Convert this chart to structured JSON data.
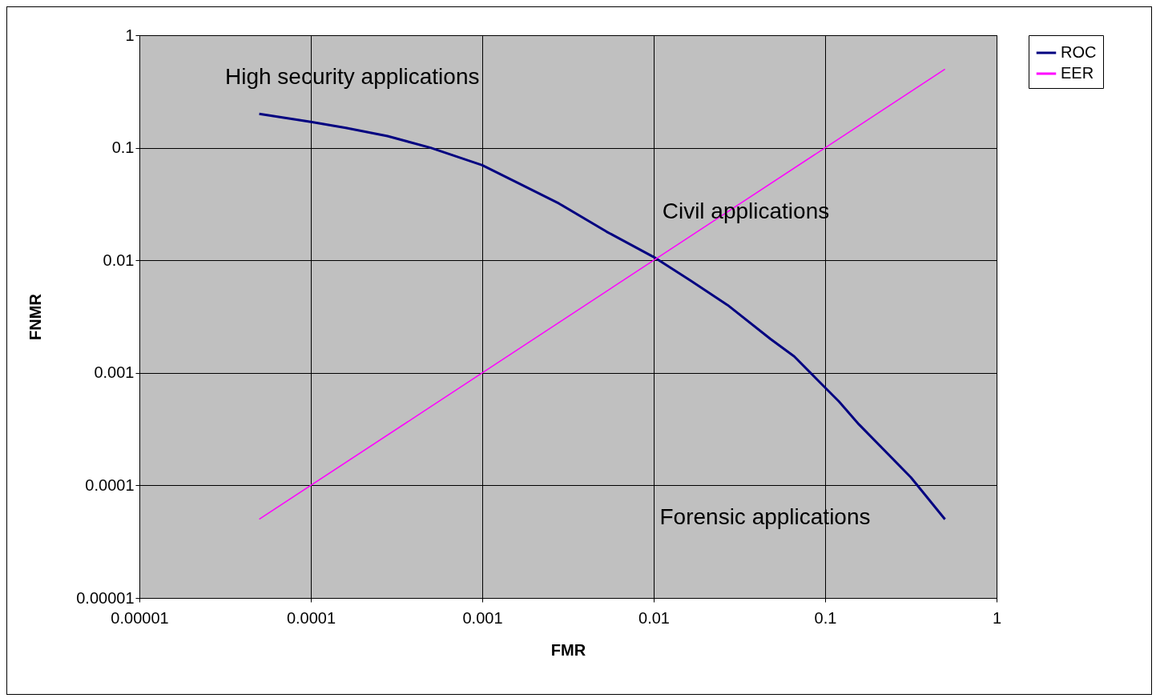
{
  "chart_data": {
    "type": "line",
    "xlabel": "FMR",
    "ylabel": "FNMR",
    "log": "xy",
    "grid": true,
    "legend": "right",
    "xlim": [
      1e-05,
      1
    ],
    "ylim": [
      1e-05,
      1
    ],
    "xticks": [
      {
        "value": 1e-05,
        "label": "0.00001"
      },
      0.0001,
      0.001,
      0.01,
      0.1,
      1
    ],
    "yticks": [
      {
        "value": 1e-05,
        "label": "0.00001"
      },
      0.0001,
      0.001,
      0.01,
      0.1,
      1
    ],
    "series": [
      {
        "name": "ROC",
        "color": "#000080",
        "x": [
          5e-05,
          0.0001,
          0.00016,
          0.00028,
          0.0005,
          0.001,
          0.0016,
          0.0028,
          0.0053,
          0.01,
          0.0164,
          0.027,
          0.048,
          0.066,
          0.1,
          0.12,
          0.157,
          0.316,
          0.5
        ],
        "values": [
          0.2,
          0.17,
          0.15,
          0.127,
          0.1,
          0.07,
          0.049,
          0.032,
          0.018,
          0.0107,
          0.0066,
          0.004,
          0.002,
          0.0014,
          0.00074,
          0.00056,
          0.00035,
          0.000118,
          5e-05
        ]
      },
      {
        "name": "EER",
        "color": "#ff00ff",
        "x": [
          5e-05,
          0.5
        ],
        "values": [
          5e-05,
          0.5
        ]
      }
    ],
    "annotations": [
      "High security applications",
      "Civil applications",
      "Forensic applications"
    ]
  }
}
